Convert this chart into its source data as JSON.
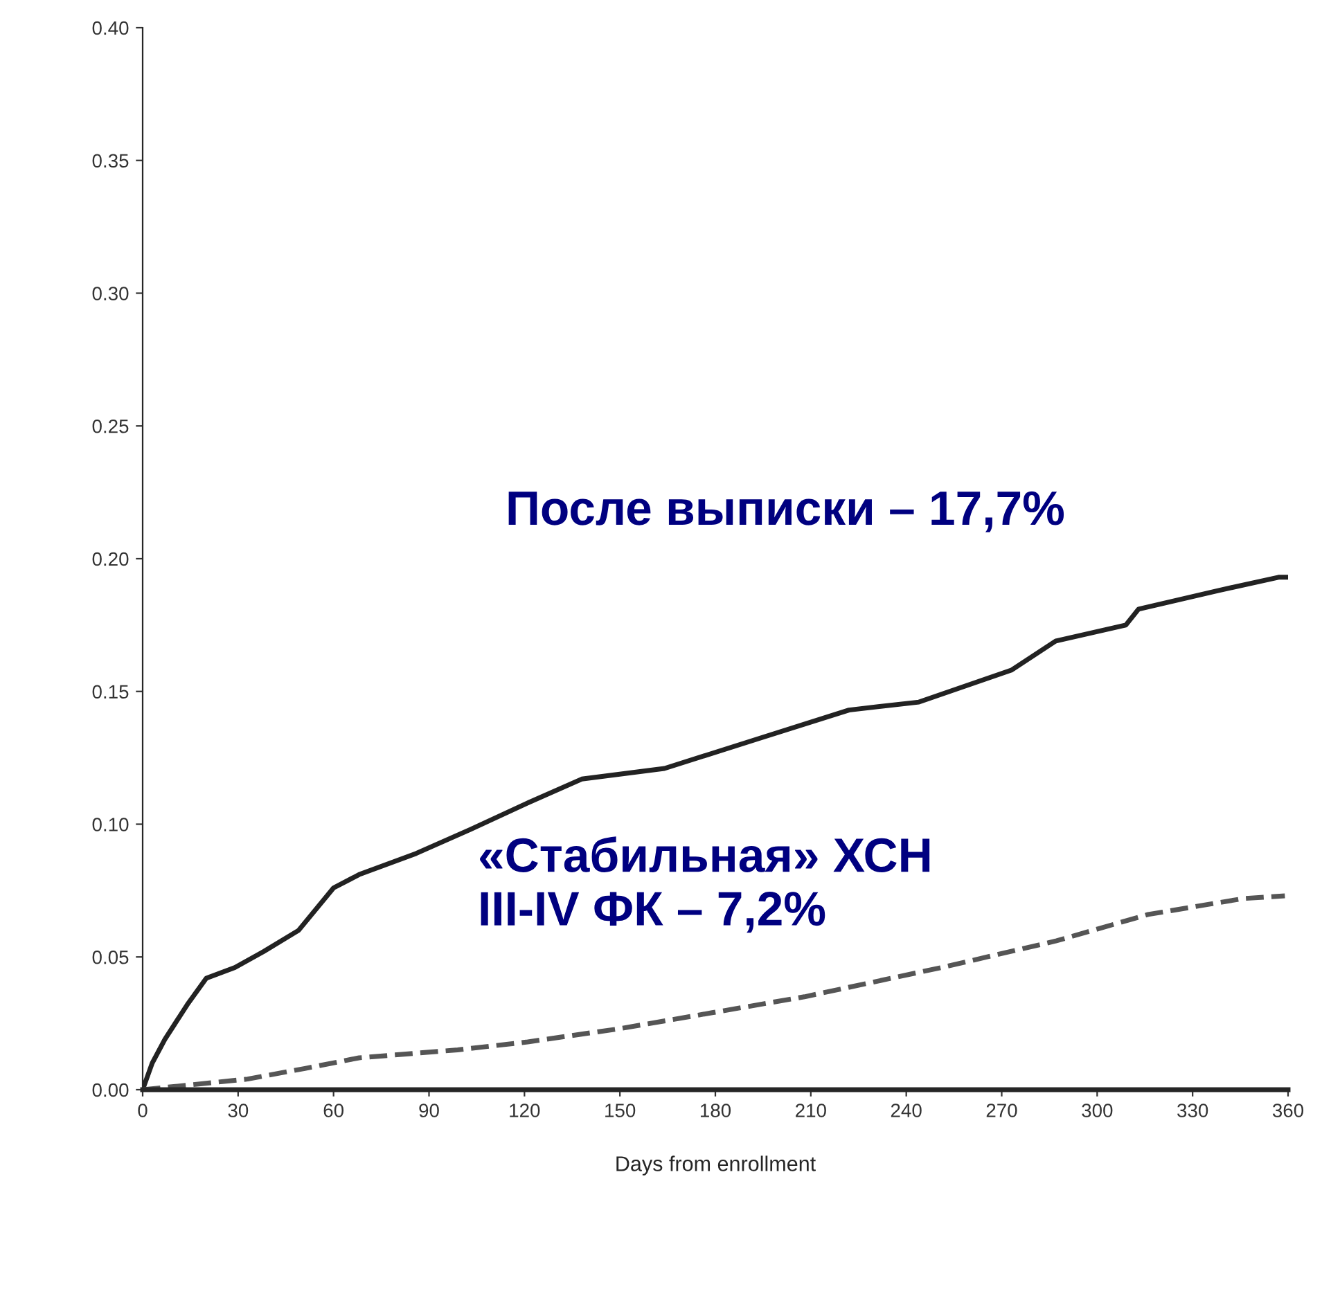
{
  "chart_data": {
    "type": "line",
    "xlabel": "Days from enrollment",
    "xlim": [
      0,
      360
    ],
    "xticks": [
      0,
      30,
      60,
      90,
      120,
      150,
      180,
      210,
      240,
      270,
      300,
      330,
      360
    ],
    "ylim": [
      0,
      0.4
    ],
    "yticks": [
      {
        "value": 0,
        "label": "0.00"
      },
      {
        "value": 0.05,
        "label": "0.05"
      },
      {
        "value": 0.1,
        "label": "0.10"
      },
      {
        "value": 0.15,
        "label": "0.15"
      },
      {
        "value": 0.2,
        "label": "0.20"
      },
      {
        "value": 0.25,
        "label": "0.25"
      },
      {
        "value": 0.3,
        "label": "0.30"
      },
      {
        "value": 0.35,
        "label": "0.35"
      },
      {
        "value": 0.4,
        "label": "0.40"
      }
    ],
    "marker": "none",
    "series": [
      {
        "color": "#222222",
        "line_style": "solid",
        "x": [
          0,
          3,
          7,
          14,
          20,
          29,
          38,
          49,
          60,
          68,
          86,
          103,
          121,
          138,
          164,
          193,
          222,
          244,
          273,
          287,
          309,
          313,
          338,
          357,
          360
        ],
        "values": [
          0,
          0.01,
          0.019,
          0.032,
          0.042,
          0.046,
          0.052,
          0.06,
          0.076,
          0.081,
          0.089,
          0.098,
          0.108,
          0.117,
          0.121,
          0.132,
          0.143,
          0.146,
          0.158,
          0.169,
          0.175,
          0.181,
          0.188,
          0.193,
          0.193
        ]
      },
      {
        "color": "#555555",
        "line_style": "dashed",
        "x": [
          0,
          33,
          51,
          68,
          99,
          121,
          150,
          179,
          208,
          251,
          287,
          316,
          346,
          359
        ],
        "values": [
          0,
          0.004,
          0.008,
          0.012,
          0.015,
          0.018,
          0.023,
          0.029,
          0.035,
          0.046,
          0.056,
          0.066,
          0.072,
          0.073
        ]
      }
    ],
    "annotations": [
      "После выписки – 17,7%",
      "«Стабильная» ХСН\nIII-IV ФК – 7,2%"
    ]
  }
}
